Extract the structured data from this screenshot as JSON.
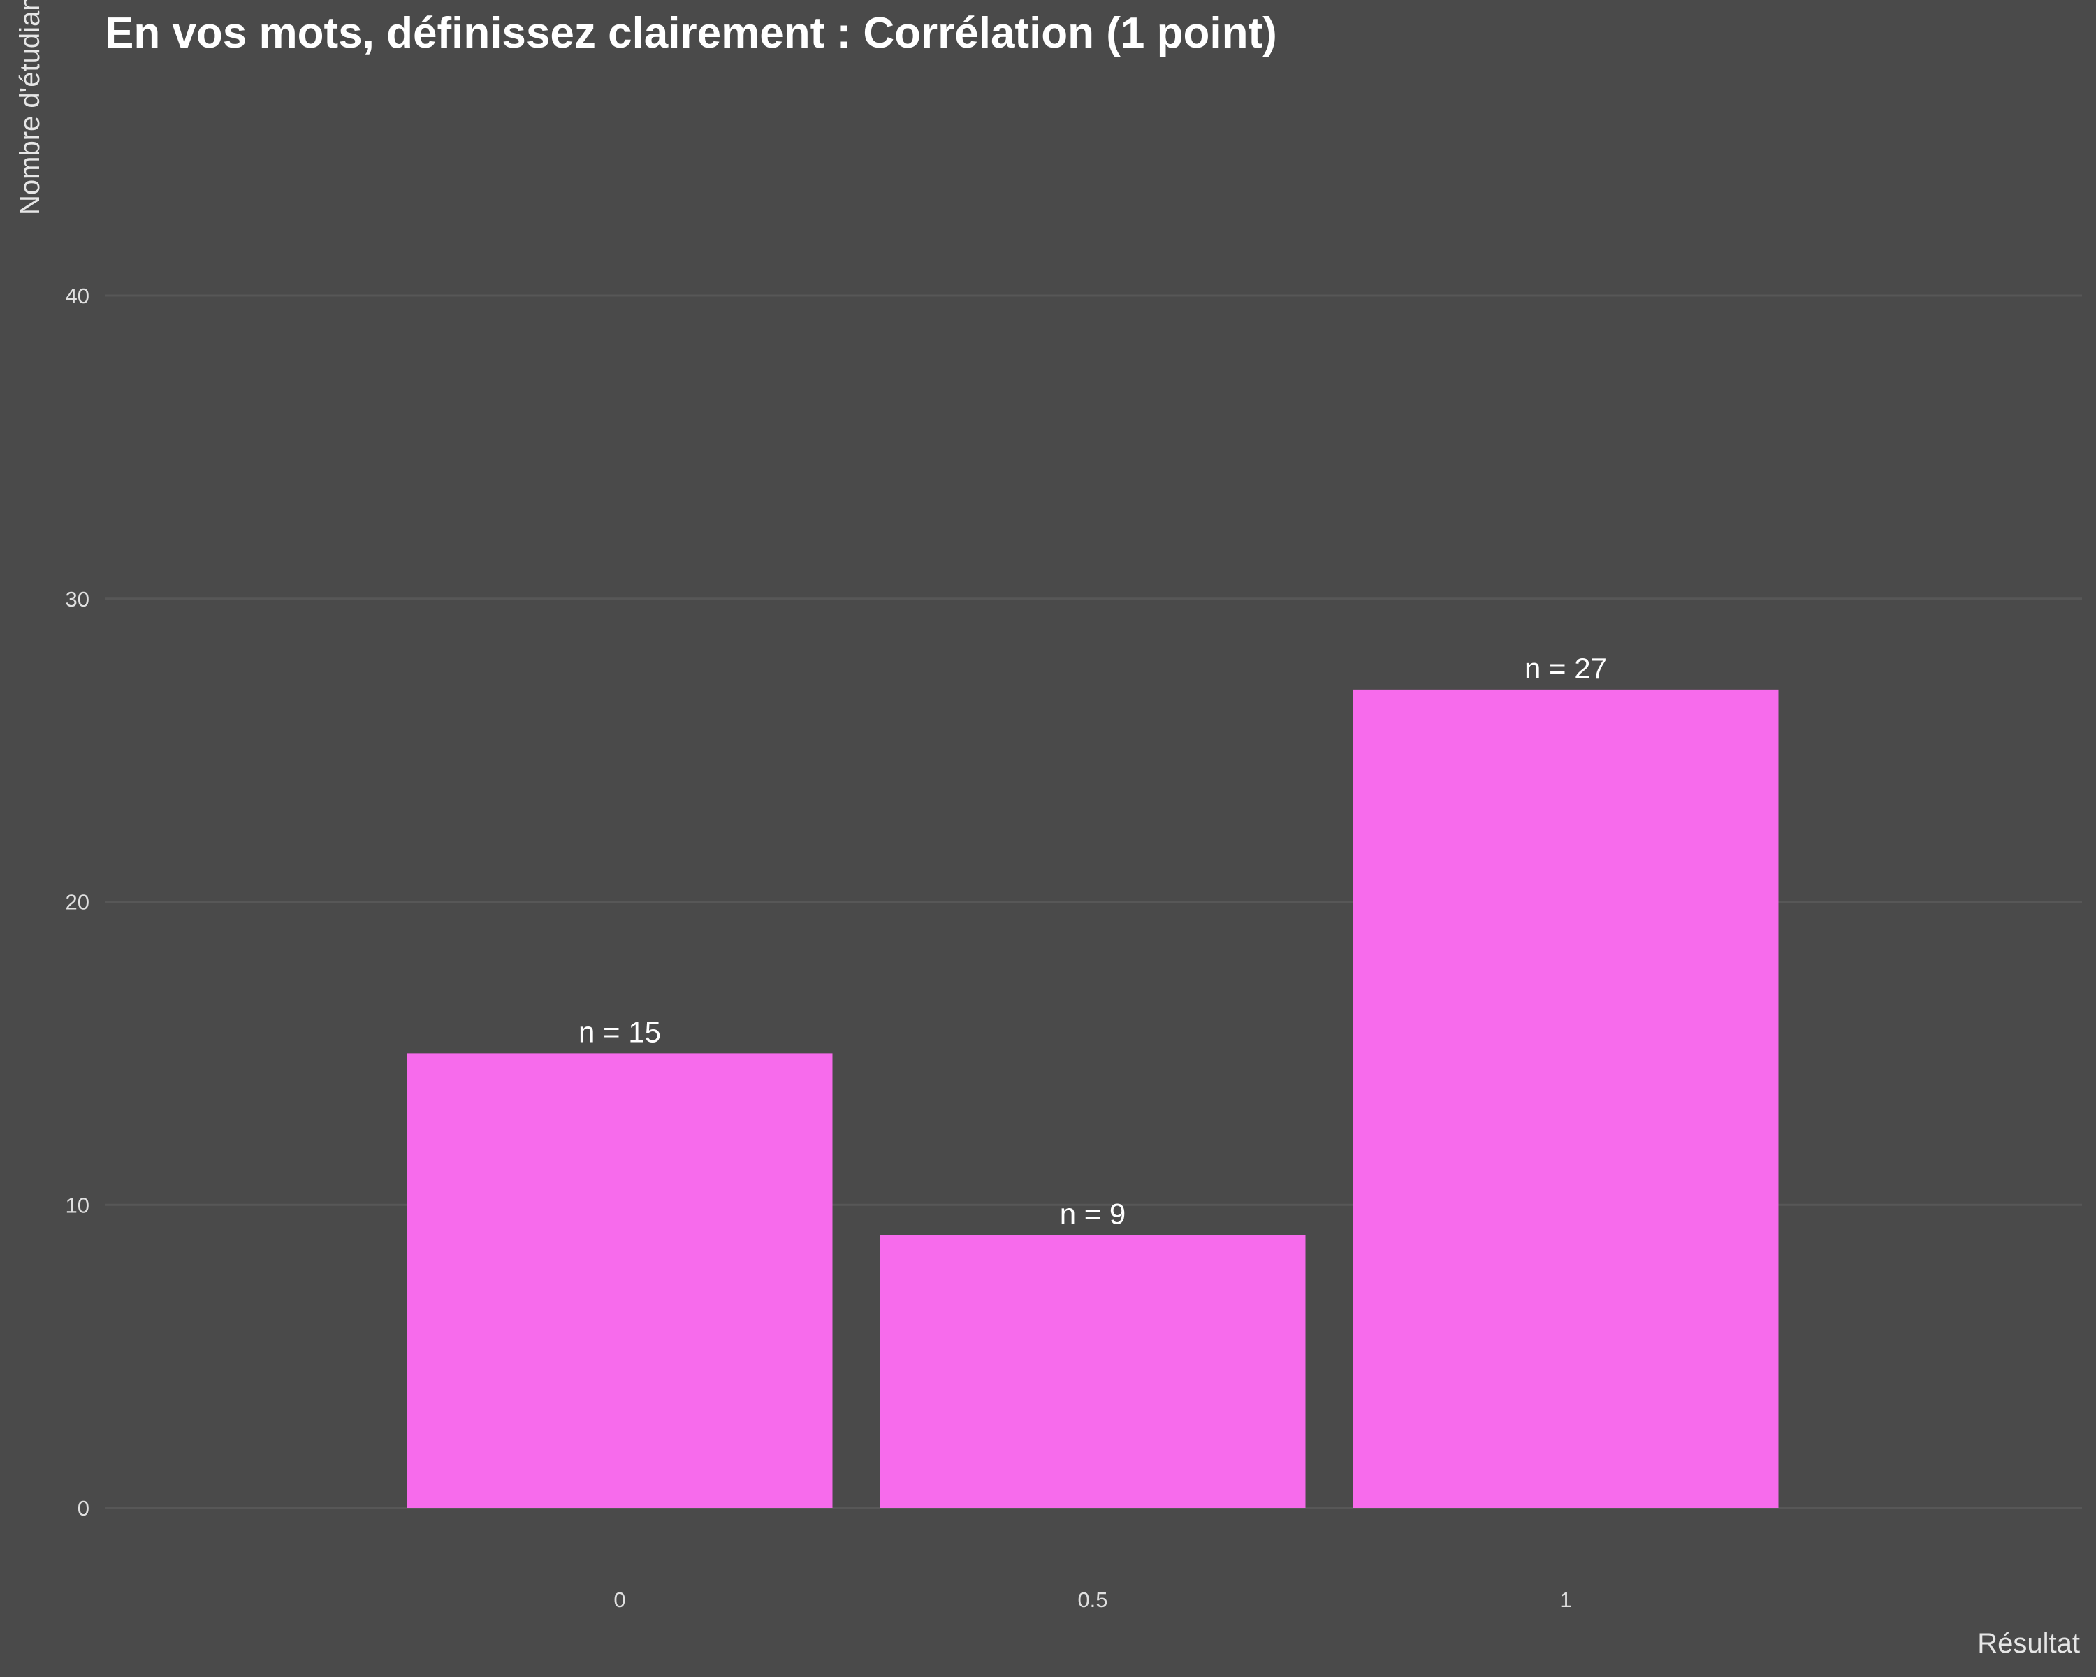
{
  "chart_data": {
    "type": "bar",
    "title": "En vos mots, définissez clairement : Corrélation (1 point)",
    "xlabel": "Résultat",
    "ylabel": "Nombre d'étudiants",
    "categories": [
      "0",
      "0.5",
      "1"
    ],
    "values": [
      15,
      9,
      27
    ],
    "data_labels": [
      "n = 15",
      "n = 9",
      "n = 27"
    ],
    "yticks": [
      0,
      10,
      20,
      30,
      40
    ],
    "ylim": [
      0,
      48
    ],
    "grid": true,
    "legend": "none",
    "colors": {
      "background": "#4a4a4a",
      "bar": "#f76bec",
      "gridline": "#575757",
      "text": "#ffffff"
    }
  }
}
